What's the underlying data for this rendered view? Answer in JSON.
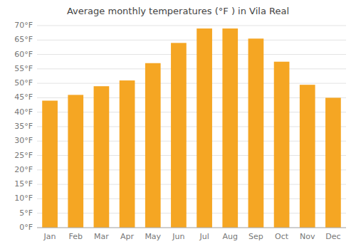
{
  "chart_data": {
    "type": "bar",
    "title": "Average monthly temperatures (°F ) in Vila Real",
    "categories": [
      "Jan",
      "Feb",
      "Mar",
      "Apr",
      "May",
      "Jun",
      "Jul",
      "Aug",
      "Sep",
      "Oct",
      "Nov",
      "Dec"
    ],
    "values": [
      44,
      46,
      49,
      51,
      57,
      64,
      69,
      69,
      65.5,
      57.5,
      49.5,
      45
    ],
    "color": "#F5A623",
    "ylim": [
      0,
      70
    ],
    "yticks": [
      {
        "value": 0,
        "label": "0°F"
      },
      {
        "value": 5,
        "label": "5°F"
      },
      {
        "value": 10,
        "label": "10°F"
      },
      {
        "value": 15,
        "label": "15°F"
      },
      {
        "value": 20,
        "label": "20°F"
      },
      {
        "value": 25,
        "label": "25°F"
      },
      {
        "value": 30,
        "label": "30°F"
      },
      {
        "value": 35,
        "label": "35°F"
      },
      {
        "value": 40,
        "label": "40°F"
      },
      {
        "value": 45,
        "label": "45°F"
      },
      {
        "value": 50,
        "label": "50°F"
      },
      {
        "value": 55,
        "label": "55°F"
      },
      {
        "value": 60,
        "label": "60°F"
      },
      {
        "value": 65,
        "label": "65°F"
      },
      {
        "value": 70,
        "label": "70°F"
      }
    ],
    "grid": true
  }
}
